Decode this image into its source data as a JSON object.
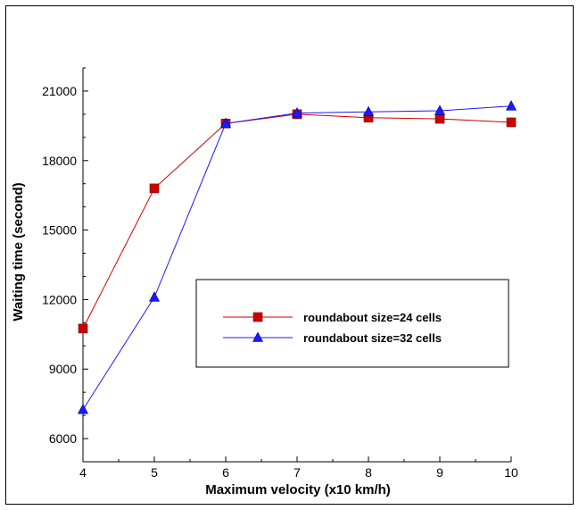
{
  "chart_data": {
    "type": "line",
    "xlabel": "Maximum velocity (x10 km/h)",
    "ylabel": "Waiting time (second)",
    "x": [
      4,
      5,
      6,
      7,
      8,
      9,
      10
    ],
    "xlim": [
      4,
      10
    ],
    "ylim": [
      5000,
      22000
    ],
    "xticks": [
      "4",
      "5",
      "6",
      "7",
      "8",
      "9",
      "10"
    ],
    "yticks": [
      "6000",
      "9000",
      "12000",
      "15000",
      "18000",
      "21000"
    ],
    "grid": false,
    "legend_position": "center-right",
    "series": [
      {
        "name": "roundabout size=24 cells",
        "values": [
          10750,
          16800,
          19600,
          20000,
          19850,
          19800,
          19650
        ],
        "color": "#cc0000",
        "marker": "square"
      },
      {
        "name": "roundabout size=32 cells",
        "values": [
          7250,
          12100,
          19600,
          20050,
          20100,
          20150,
          20350
        ],
        "color": "#1a1aff",
        "marker": "triangle"
      }
    ]
  }
}
